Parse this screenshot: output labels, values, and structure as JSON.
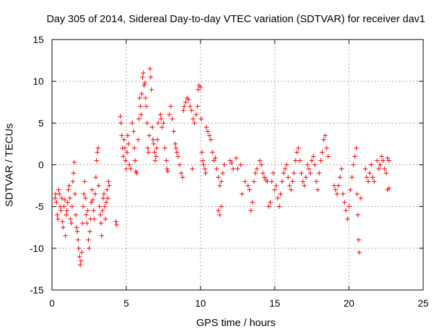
{
  "chart_data": {
    "type": "scatter",
    "title": "Day 305 of 2014, Sidereal Day-to-day VTEC variation (SDTVAR) for receiver dav1",
    "xlabel": "GPS time / hours",
    "ylabel": "SDTVAR / TECUs",
    "xlim": [
      0,
      25
    ],
    "ylim": [
      -15,
      15
    ],
    "xticks": [
      "0",
      "5",
      "10",
      "15",
      "20",
      "25"
    ],
    "yticks": [
      "-15",
      "-10",
      "-5",
      "0",
      "5",
      "10",
      "15"
    ],
    "grid": true,
    "marker": "plus",
    "color": "#ff0000",
    "series": [
      {
        "name": "dav1",
        "points": [
          [
            0.2,
            -4.0
          ],
          [
            0.25,
            -3.5
          ],
          [
            0.3,
            -4.5
          ],
          [
            0.35,
            -6.0
          ],
          [
            0.4,
            -6.5
          ],
          [
            0.45,
            -3.0
          ],
          [
            0.5,
            -3.5
          ],
          [
            0.55,
            -5.0
          ],
          [
            0.6,
            -5.5
          ],
          [
            0.65,
            -4.0
          ],
          [
            0.7,
            -6.8
          ],
          [
            0.75,
            -7.5
          ],
          [
            0.8,
            -5.0
          ],
          [
            0.85,
            -4.2
          ],
          [
            0.9,
            -8.5
          ],
          [
            0.95,
            -6.0
          ],
          [
            1.0,
            -5.5
          ],
          [
            1.05,
            -4.5
          ],
          [
            1.1,
            -3.0
          ],
          [
            1.15,
            -2.5
          ],
          [
            1.2,
            -4.0
          ],
          [
            1.25,
            -6.5
          ],
          [
            1.3,
            -7.0
          ],
          [
            1.35,
            -5.0
          ],
          [
            1.4,
            -2.0
          ],
          [
            1.45,
            -1.0
          ],
          [
            1.5,
            0.3
          ],
          [
            1.55,
            -3.5
          ],
          [
            1.6,
            -6.0
          ],
          [
            1.65,
            -7.5
          ],
          [
            1.7,
            -8.0
          ],
          [
            1.75,
            -9.0
          ],
          [
            1.8,
            -10.0
          ],
          [
            1.85,
            -11.0
          ],
          [
            1.9,
            -12.0
          ],
          [
            1.95,
            -11.5
          ],
          [
            2.0,
            -10.5
          ],
          [
            2.05,
            -7.0
          ],
          [
            2.1,
            -5.0
          ],
          [
            2.15,
            -3.5
          ],
          [
            2.2,
            -2.0
          ],
          [
            2.25,
            -4.0
          ],
          [
            2.3,
            -6.0
          ],
          [
            2.35,
            -7.0
          ],
          [
            2.4,
            -5.5
          ],
          [
            2.45,
            -9.0
          ],
          [
            2.5,
            -10.0
          ],
          [
            2.55,
            -8.0
          ],
          [
            2.6,
            -6.5
          ],
          [
            2.65,
            -4.5
          ],
          [
            2.7,
            -3.0
          ],
          [
            2.75,
            -4.2
          ],
          [
            2.8,
            -5.5
          ],
          [
            2.85,
            -6.5
          ],
          [
            2.9,
            -3.5
          ],
          [
            2.95,
            -1.5
          ],
          [
            3.0,
            0.5
          ],
          [
            3.05,
            1.5
          ],
          [
            3.1,
            2.0
          ],
          [
            3.15,
            -2.5
          ],
          [
            3.2,
            -5.0
          ],
          [
            3.25,
            -6.0
          ],
          [
            3.3,
            -7.0
          ],
          [
            3.35,
            -8.5
          ],
          [
            3.4,
            -5.5
          ],
          [
            3.45,
            -4.0
          ],
          [
            3.5,
            -3.5
          ],
          [
            3.55,
            -5.0
          ],
          [
            3.6,
            -6.5
          ],
          [
            3.65,
            -4.5
          ],
          [
            3.7,
            -3.0
          ],
          [
            3.75,
            -4.0
          ],
          [
            3.8,
            -2.0
          ],
          [
            3.85,
            -2.5
          ],
          [
            4.3,
            -6.8
          ],
          [
            4.35,
            -7.2
          ],
          [
            4.6,
            5.8
          ],
          [
            4.65,
            5.0
          ],
          [
            4.7,
            3.5
          ],
          [
            4.75,
            2.0
          ],
          [
            4.8,
            1.0
          ],
          [
            4.85,
            3.0
          ],
          [
            4.9,
            2.0
          ],
          [
            4.95,
            0.5
          ],
          [
            5.0,
            -0.5
          ],
          [
            5.05,
            1.5
          ],
          [
            5.1,
            3.5
          ],
          [
            5.15,
            2.5
          ],
          [
            5.2,
            0.0
          ],
          [
            5.3,
            -0.5
          ],
          [
            5.4,
            5.0
          ],
          [
            5.5,
            4.0
          ],
          [
            5.55,
            2.0
          ],
          [
            5.6,
            0.5
          ],
          [
            5.65,
            -0.8
          ],
          [
            5.7,
            -1.0
          ],
          [
            5.8,
            3.0
          ],
          [
            5.85,
            5.5
          ],
          [
            5.9,
            8.0
          ],
          [
            5.95,
            7.0
          ],
          [
            6.0,
            6.0
          ],
          [
            6.05,
            8.5
          ],
          [
            6.1,
            10.5
          ],
          [
            6.15,
            11.0
          ],
          [
            6.2,
            9.5
          ],
          [
            6.25,
            9.8
          ],
          [
            6.3,
            8.0
          ],
          [
            6.35,
            7.0
          ],
          [
            6.4,
            5.0
          ],
          [
            6.45,
            2.0
          ],
          [
            6.5,
            1.5
          ],
          [
            6.55,
            3.5
          ],
          [
            6.6,
            11.5
          ],
          [
            6.65,
            10.5
          ],
          [
            6.7,
            9.0
          ],
          [
            6.75,
            4.5
          ],
          [
            6.8,
            3.0
          ],
          [
            6.85,
            2.5
          ],
          [
            6.9,
            1.5
          ],
          [
            6.95,
            0.5
          ],
          [
            7.0,
            1.0
          ],
          [
            7.05,
            2.0
          ],
          [
            7.1,
            3.0
          ],
          [
            7.15,
            5.0
          ],
          [
            7.3,
            6.0
          ],
          [
            7.35,
            5.5
          ],
          [
            7.4,
            4.5
          ],
          [
            7.5,
            5.0
          ],
          [
            7.6,
            2.0
          ],
          [
            7.7,
            0.5
          ],
          [
            7.75,
            -0.5
          ],
          [
            7.8,
            -0.8
          ],
          [
            7.9,
            6.0
          ],
          [
            8.0,
            7.0
          ],
          [
            8.1,
            5.5
          ],
          [
            8.2,
            4.0
          ],
          [
            8.3,
            2.5
          ],
          [
            8.35,
            2.0
          ],
          [
            8.4,
            1.5
          ],
          [
            8.5,
            1.0
          ],
          [
            8.6,
            0.0
          ],
          [
            8.7,
            -1.0
          ],
          [
            8.8,
            -1.5
          ],
          [
            8.85,
            6.5
          ],
          [
            8.9,
            7.0
          ],
          [
            9.0,
            7.5
          ],
          [
            9.1,
            8.0
          ],
          [
            9.2,
            7.8
          ],
          [
            9.3,
            7.0
          ],
          [
            9.4,
            6.5
          ],
          [
            9.45,
            -0.5
          ],
          [
            9.5,
            5.5
          ],
          [
            9.6,
            5.0
          ],
          [
            9.7,
            6.0
          ],
          [
            9.8,
            7.0
          ],
          [
            9.85,
            9.0
          ],
          [
            9.9,
            9.5
          ],
          [
            10.0,
            9.3
          ],
          [
            10.05,
            5.5
          ],
          [
            10.1,
            1.5
          ],
          [
            10.15,
            0.5
          ],
          [
            10.2,
            0.0
          ],
          [
            10.3,
            -0.5
          ],
          [
            10.35,
            -1.0
          ],
          [
            10.4,
            4.5
          ],
          [
            10.5,
            4.0
          ],
          [
            10.6,
            3.5
          ],
          [
            10.7,
            3.0
          ],
          [
            10.8,
            1.5
          ],
          [
            10.9,
            0.5
          ],
          [
            11.0,
            0.8
          ],
          [
            11.1,
            -0.5
          ],
          [
            11.2,
            -1.5
          ],
          [
            11.3,
            -2.5
          ],
          [
            11.4,
            -2.0
          ],
          [
            11.5,
            -1.0
          ],
          [
            11.2,
            -5.5
          ],
          [
            11.3,
            -6.0
          ],
          [
            11.4,
            -5.0
          ],
          [
            11.6,
            0.0
          ],
          [
            12.0,
            0.5
          ],
          [
            12.1,
            0.2
          ],
          [
            12.2,
            -0.5
          ],
          [
            12.4,
            0.8
          ],
          [
            12.5,
            -0.5
          ],
          [
            12.7,
            0.0
          ],
          [
            12.8,
            -3.5
          ],
          [
            13.0,
            -2.0
          ],
          [
            13.2,
            -2.5
          ],
          [
            13.3,
            -3.0
          ],
          [
            13.4,
            -5.5
          ],
          [
            13.5,
            -4.5
          ],
          [
            13.6,
            -2.0
          ],
          [
            13.7,
            -1.0
          ],
          [
            13.8,
            -0.5
          ],
          [
            14.0,
            0.5
          ],
          [
            14.1,
            0.0
          ],
          [
            14.2,
            -1.0
          ],
          [
            14.3,
            -1.5
          ],
          [
            14.4,
            -1.8
          ],
          [
            14.5,
            -2.0
          ],
          [
            14.6,
            -5.0
          ],
          [
            14.7,
            -4.5
          ],
          [
            14.8,
            -2.0
          ],
          [
            14.9,
            -1.0
          ],
          [
            15.0,
            -3.0
          ],
          [
            15.1,
            -2.5
          ],
          [
            15.2,
            -4.0
          ],
          [
            15.3,
            -5.0
          ],
          [
            15.4,
            -3.5
          ],
          [
            15.5,
            -2.0
          ],
          [
            15.6,
            -1.0
          ],
          [
            15.7,
            -0.5
          ],
          [
            15.8,
            0.0
          ],
          [
            15.9,
            -1.5
          ],
          [
            16.0,
            -2.5
          ],
          [
            16.1,
            -3.0
          ],
          [
            16.2,
            -2.0
          ],
          [
            16.3,
            -1.0
          ],
          [
            16.4,
            0.5
          ],
          [
            16.5,
            1.5
          ],
          [
            16.6,
            2.0
          ],
          [
            16.7,
            0.5
          ],
          [
            16.8,
            -1.0
          ],
          [
            16.9,
            -2.0
          ],
          [
            17.0,
            -2.5
          ],
          [
            17.1,
            -1.5
          ],
          [
            17.2,
            0.0
          ],
          [
            17.3,
            -0.5
          ],
          [
            17.4,
            -1.0
          ],
          [
            17.5,
            0.5
          ],
          [
            17.6,
            1.0
          ],
          [
            17.7,
            0.0
          ],
          [
            17.8,
            -2.0
          ],
          [
            17.9,
            -3.0
          ],
          [
            18.0,
            -1.0
          ],
          [
            18.1,
            0.5
          ],
          [
            18.2,
            1.5
          ],
          [
            18.3,
            3.0
          ],
          [
            18.4,
            3.5
          ],
          [
            18.5,
            2.0
          ],
          [
            18.6,
            1.0
          ],
          [
            19.0,
            -2.5
          ],
          [
            19.1,
            -3.0
          ],
          [
            19.2,
            -3.5
          ],
          [
            19.3,
            -2.5
          ],
          [
            19.4,
            -1.5
          ],
          [
            19.5,
            -0.5
          ],
          [
            19.6,
            -3.5
          ],
          [
            19.7,
            -4.5
          ],
          [
            19.8,
            -5.5
          ],
          [
            19.9,
            -6.5
          ],
          [
            20.0,
            -5.0
          ],
          [
            20.1,
            -3.0
          ],
          [
            20.2,
            -1.5
          ],
          [
            20.3,
            0.0
          ],
          [
            20.4,
            1.0
          ],
          [
            20.5,
            2.0
          ],
          [
            20.55,
            -3.5
          ],
          [
            20.6,
            -6.0
          ],
          [
            20.65,
            -9.0
          ],
          [
            20.7,
            -10.5
          ],
          [
            20.8,
            -4.0
          ],
          [
            21.1,
            -0.5
          ],
          [
            21.2,
            -1.5
          ],
          [
            21.3,
            -2.0
          ],
          [
            21.4,
            -1.0
          ],
          [
            21.5,
            0.0
          ],
          [
            21.6,
            -1.5
          ],
          [
            21.7,
            -2.0
          ],
          [
            21.9,
            0.5
          ],
          [
            22.0,
            -0.5
          ],
          [
            22.1,
            0.0
          ],
          [
            22.2,
            1.0
          ],
          [
            22.3,
            0.5
          ],
          [
            22.4,
            -0.5
          ],
          [
            22.5,
            -1.0
          ],
          [
            22.6,
            0.8
          ],
          [
            22.7,
            0.5
          ],
          [
            22.6,
            -3.0
          ],
          [
            22.7,
            -2.8
          ]
        ]
      }
    ]
  }
}
